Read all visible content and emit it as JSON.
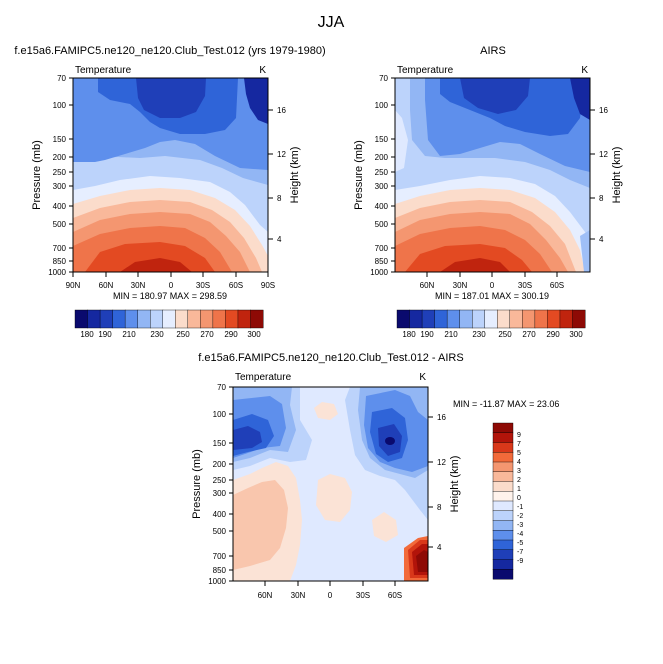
{
  "page": {
    "suptitle": "JJA",
    "colors": {
      "cold_deep": "#0a0a6e",
      "cold": "#2f64d8",
      "light": "#dfe9ff",
      "warm": "#f26a3a",
      "hot": "#b2140a"
    }
  },
  "chart_data": [
    {
      "type": "heatmap",
      "title": "f.e15a6.FAMIPC5.ne120_ne120.Club_Test.012 (yrs 1979-1980)",
      "left_label": "Temperature",
      "right_label": "K",
      "xlabel": "",
      "ylabel": "Pressure (mb)",
      "y2label": "Height (km)",
      "x_ticks": [
        "90N",
        "60N",
        "30N",
        "0",
        "30S",
        "60S",
        "90S"
      ],
      "y_ticks": [
        "70",
        "100",
        "150",
        "200",
        "250",
        "300",
        "400",
        "500",
        "700",
        "850",
        "1000"
      ],
      "y2_ticks": [
        "16",
        "12",
        "8",
        "4"
      ],
      "stats": "MIN = 180.97  MAX = 298.59",
      "colorbar_ticks": [
        "180",
        "190",
        "210",
        "230",
        "250",
        "270",
        "290",
        "300"
      ],
      "colorbar_levels": [
        180,
        185,
        190,
        200,
        210,
        220,
        230,
        240,
        250,
        260,
        270,
        280,
        290,
        295,
        300
      ],
      "min": 180.97,
      "max": 298.59
    },
    {
      "type": "heatmap",
      "title": "AIRS",
      "left_label": "Temperature",
      "right_label": "K",
      "xlabel": "",
      "ylabel": "Pressure (mb)",
      "y2label": "Height (km)",
      "x_ticks": [
        "60N",
        "30N",
        "0",
        "30S",
        "60S"
      ],
      "y_ticks": [
        "70",
        "100",
        "150",
        "200",
        "250",
        "300",
        "400",
        "500",
        "700",
        "850",
        "1000"
      ],
      "y2_ticks": [
        "16",
        "12",
        "8",
        "4"
      ],
      "stats": "MIN = 187.01  MAX = 300.19",
      "colorbar_ticks": [
        "180",
        "190",
        "210",
        "230",
        "250",
        "270",
        "290",
        "300"
      ],
      "colorbar_levels": [
        180,
        185,
        190,
        200,
        210,
        220,
        230,
        240,
        250,
        260,
        270,
        280,
        290,
        295,
        300
      ],
      "min": 187.01,
      "max": 300.19
    },
    {
      "type": "heatmap",
      "title": "f.e15a6.FAMIPC5.ne120_ne120.Club_Test.012 - AIRS",
      "left_label": "Temperature",
      "right_label": "K",
      "xlabel": "",
      "ylabel": "Pressure (mb)",
      "y2label": "Height (km)",
      "x_ticks": [
        "60N",
        "30N",
        "0",
        "30S",
        "60S"
      ],
      "y_ticks": [
        "70",
        "100",
        "150",
        "200",
        "250",
        "300",
        "400",
        "500",
        "700",
        "850",
        "1000"
      ],
      "y2_ticks": [
        "16",
        "12",
        "8",
        "4"
      ],
      "stats": "MIN = -11.87  MAX =  23.06",
      "colorbar_ticks": [
        "9",
        "7",
        "5",
        "4",
        "3",
        "2",
        "1",
        "0",
        "-1",
        "-2",
        "-3",
        "-4",
        "-5",
        "-7",
        "-9"
      ],
      "min": -11.87,
      "max": 23.06
    }
  ]
}
